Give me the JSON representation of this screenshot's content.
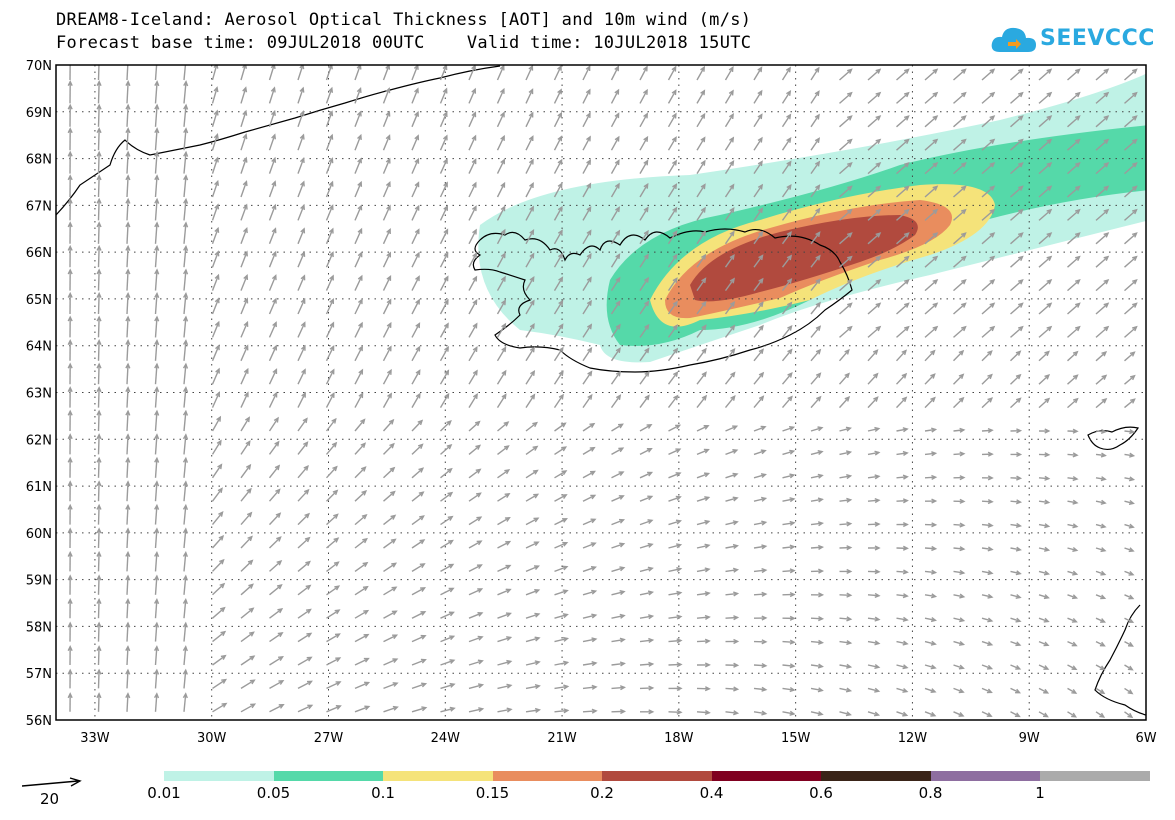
{
  "header": {
    "title_line1": "DREAM8-Iceland: Aerosol Optical Thickness [AOT] and 10m wind (m/s)",
    "title_line2": "Forecast base time: 09JUL2018 00UTC    Valid time: 10JUL2018 15UTC"
  },
  "logo": {
    "text": "SEEVCCC",
    "color": "#2aa9e0",
    "icon": "cloud-icon"
  },
  "map": {
    "lat_labels": [
      "70N",
      "69N",
      "68N",
      "67N",
      "66N",
      "65N",
      "64N",
      "63N",
      "62N",
      "61N",
      "60N",
      "59N",
      "58N",
      "57N",
      "56N"
    ],
    "lon_labels": [
      "33W",
      "30W",
      "27W",
      "24W",
      "21W",
      "18W",
      "15W",
      "12W",
      "9W",
      "6W"
    ],
    "lon_range": [
      -34,
      -6
    ],
    "lat_range": [
      56,
      70
    ],
    "grid": "dotted",
    "wind_arrow_color": "#9b9b9b"
  },
  "colorbar": {
    "labels": [
      "0.01",
      "0.05",
      "0.1",
      "0.15",
      "0.2",
      "0.4",
      "0.6",
      "0.8",
      "1"
    ],
    "colors": [
      "#bff2e6",
      "#55d9a9",
      "#f5e37a",
      "#e98d5e",
      "#b14a3e",
      "#800020",
      "#3a2418",
      "#8e6ea0",
      "#ababab"
    ]
  },
  "wind_reference": {
    "label": "20"
  }
}
